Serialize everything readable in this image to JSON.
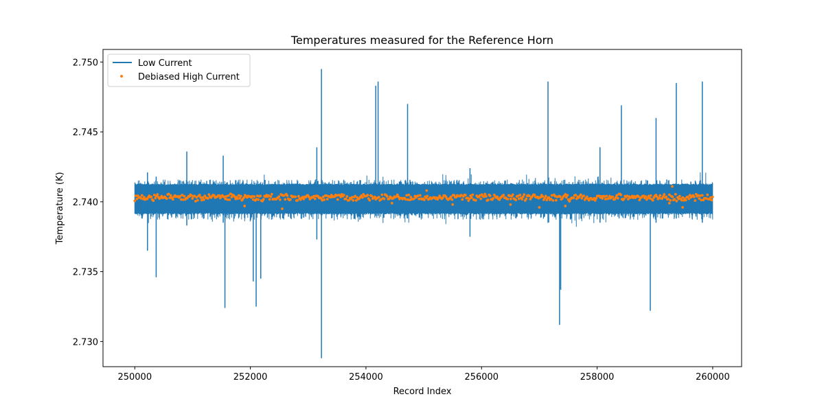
{
  "chart_data": {
    "type": "line",
    "title": "Temperatures measured for the Reference Horn",
    "xlabel": "Record Index",
    "ylabel": "Temperature (K)",
    "xlim": [
      249450,
      260500
    ],
    "ylim": [
      2.7282,
      2.7509
    ],
    "grid": false,
    "legend_position": "top-left",
    "x_ticks": [
      250000,
      252000,
      254000,
      256000,
      258000,
      260000
    ],
    "x_tick_labels": [
      "250000",
      "252000",
      "254000",
      "256000",
      "258000",
      "260000"
    ],
    "y_ticks": [
      2.73,
      2.735,
      2.74,
      2.745,
      2.75
    ],
    "y_tick_labels": [
      "2.730",
      "2.735",
      "2.740",
      "2.745",
      "2.750"
    ],
    "series": [
      {
        "name": "Low Current",
        "style": "line",
        "color": "#1f77b4",
        "x_range": [
          250000,
          260000
        ],
        "baseline": 2.7403,
        "band": [
          2.7392,
          2.7412
        ],
        "spikes": [
          {
            "x": 250220,
            "min": 2.7365,
            "max": 2.7421
          },
          {
            "x": 250370,
            "min": 2.7346,
            "max": 2.7418
          },
          {
            "x": 250900,
            "min": 2.7383,
            "max": 2.7436
          },
          {
            "x": 251530,
            "min": 2.7385,
            "max": 2.7433
          },
          {
            "x": 251560,
            "min": 2.7324,
            "max": 2.7405
          },
          {
            "x": 252050,
            "min": 2.7343,
            "max": 2.741
          },
          {
            "x": 252100,
            "min": 2.7325,
            "max": 2.741
          },
          {
            "x": 252180,
            "min": 2.7345,
            "max": 2.7411
          },
          {
            "x": 253150,
            "min": 2.7373,
            "max": 2.7439
          },
          {
            "x": 253230,
            "min": 2.7288,
            "max": 2.7495
          },
          {
            "x": 254170,
            "min": 2.739,
            "max": 2.7483
          },
          {
            "x": 254210,
            "min": 2.739,
            "max": 2.7486
          },
          {
            "x": 254720,
            "min": 2.7388,
            "max": 2.747
          },
          {
            "x": 255800,
            "min": 2.7375,
            "max": 2.7424
          },
          {
            "x": 257150,
            "min": 2.7385,
            "max": 2.7486
          },
          {
            "x": 257350,
            "min": 2.7312,
            "max": 2.741
          },
          {
            "x": 257370,
            "min": 2.7337,
            "max": 2.7408
          },
          {
            "x": 258050,
            "min": 2.7385,
            "max": 2.7439
          },
          {
            "x": 258420,
            "min": 2.739,
            "max": 2.7469
          },
          {
            "x": 258920,
            "min": 2.7322,
            "max": 2.741
          },
          {
            "x": 259020,
            "min": 2.7385,
            "max": 2.746
          },
          {
            "x": 259370,
            "min": 2.7388,
            "max": 2.7485
          },
          {
            "x": 259820,
            "min": 2.7385,
            "max": 2.7486
          }
        ]
      },
      {
        "name": "Debiased High Current",
        "style": "scatter",
        "color": "#ff7f0e",
        "x_range": [
          250000,
          260000
        ],
        "baseline": 2.7403,
        "band": [
          2.7401,
          2.7405
        ],
        "outliers": [
          {
            "x": 251900,
            "y": 2.7397
          },
          {
            "x": 252550,
            "y": 2.7395
          },
          {
            "x": 254450,
            "y": 2.7399
          },
          {
            "x": 255050,
            "y": 2.7408
          },
          {
            "x": 255500,
            "y": 2.7398
          },
          {
            "x": 256500,
            "y": 2.7398
          },
          {
            "x": 257000,
            "y": 2.7396
          },
          {
            "x": 257450,
            "y": 2.7397
          },
          {
            "x": 259250,
            "y": 2.7399
          },
          {
            "x": 259300,
            "y": 2.7411
          },
          {
            "x": 259480,
            "y": 2.7396
          }
        ]
      }
    ]
  }
}
